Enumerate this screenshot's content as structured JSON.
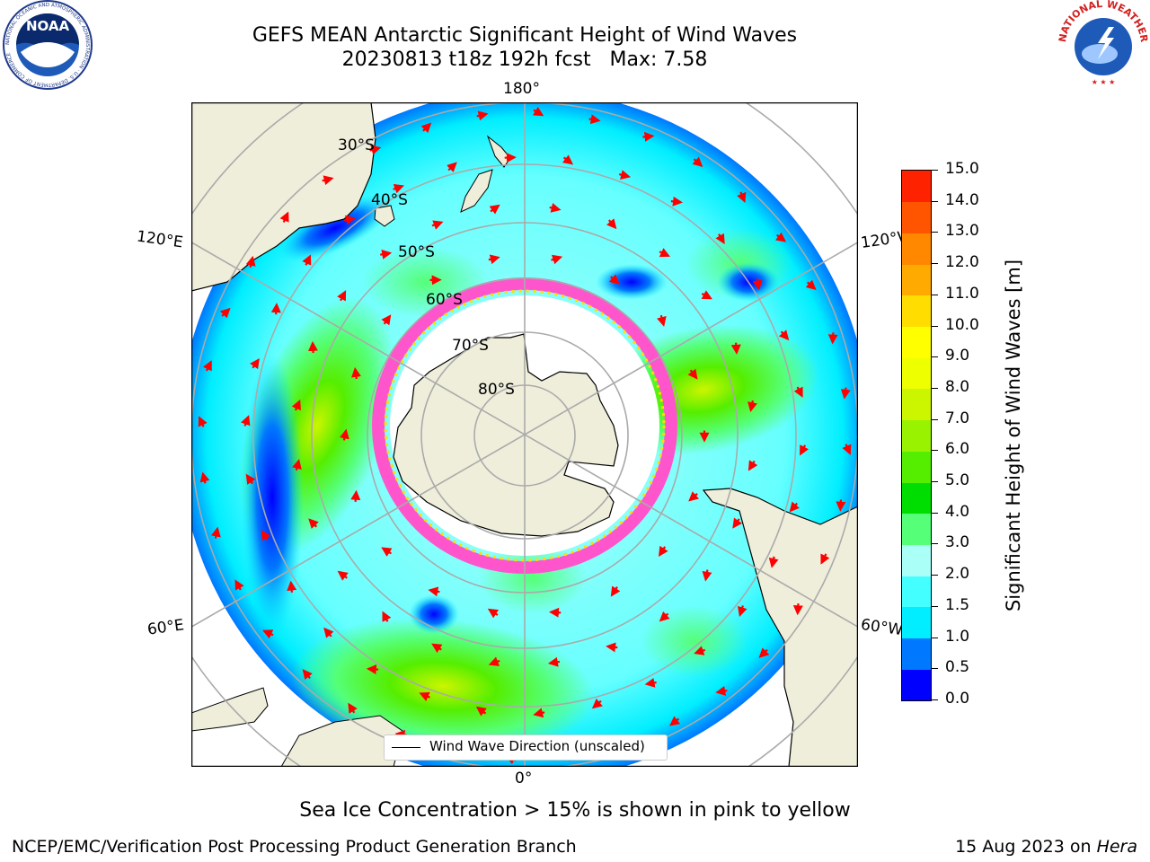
{
  "title": {
    "line1": "GEFS MEAN Antarctic Significant Height of Wind Waves",
    "line2": "20230813 t18z 192h fcst   Max: 7.58"
  },
  "map": {
    "projection": "south-polar-stereographic",
    "longitude_labels": {
      "top": "180°",
      "bottom": "0°",
      "upper_left": "120°E",
      "upper_right": "120°W",
      "lower_left": "60°E",
      "lower_right": "60°W"
    },
    "latitude_labels": [
      "30°S",
      "40°S",
      "50°S",
      "60°S",
      "70°S",
      "80°S"
    ],
    "legend": "Wind Wave Direction (unscaled)",
    "ocean_fill": "#00ffff",
    "land_color": "#efeedb",
    "arrow_color": "#ff0000",
    "ice_color": "#ff55cc"
  },
  "colorbar": {
    "label": "Significant Height of Wind Waves [m]",
    "ticks": [
      "0.0",
      "0.5",
      "1.0",
      "1.5",
      "2.0",
      "3.0",
      "4.0",
      "5.0",
      "6.0",
      "7.0",
      "8.0",
      "9.0",
      "10.0",
      "11.0",
      "12.0",
      "13.0",
      "14.0",
      "15.0"
    ],
    "colors": [
      "#0000ff",
      "#0078ff",
      "#00eeff",
      "#44ffff",
      "#aafff7",
      "#55ff77",
      "#00dd00",
      "#55ee00",
      "#99f200",
      "#ccf500",
      "#eeff00",
      "#ffff00",
      "#ffdd00",
      "#ffaa00",
      "#ff8800",
      "#ff5500",
      "#ff2200"
    ]
  },
  "note": "Sea Ice Concentration > 15% is shown in pink to yellow",
  "footer": {
    "left": "NCEP/EMC/Verification Post Processing Product Generation Branch",
    "right_date": "15 Aug 2023 on",
    "right_host": "Hera"
  },
  "logos": {
    "noaa_text": "NOAA",
    "noaa_ring": "NATIONAL OCEANIC AND ATMOSPHERIC ADMINISTRATION · U.S. DEPARTMENT OF COMMERCE",
    "nws_ring": "NATIONAL WEATHER SERVICE"
  }
}
